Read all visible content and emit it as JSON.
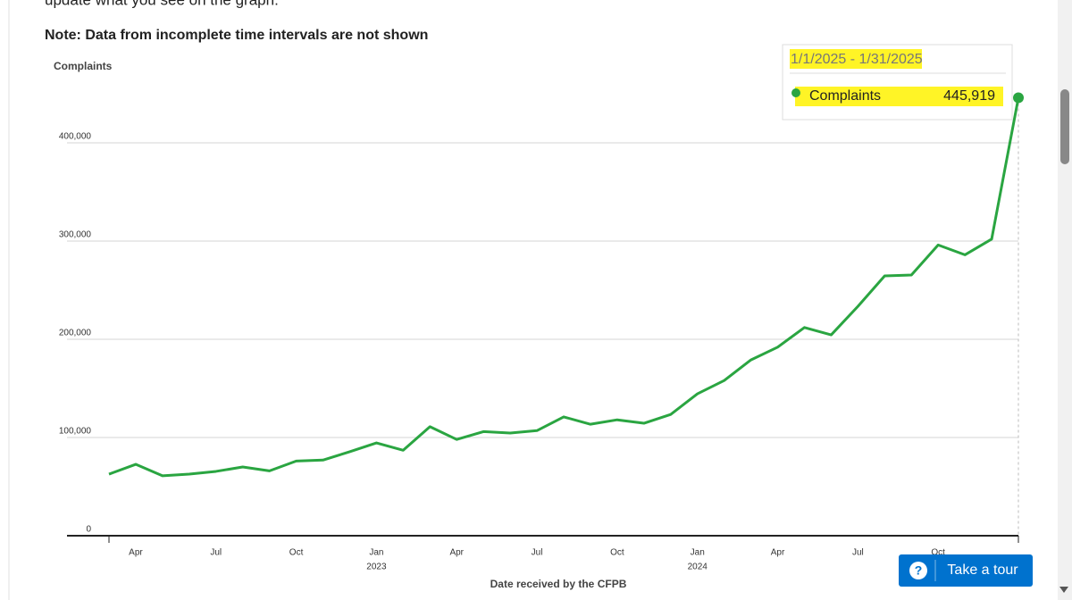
{
  "intro": "update what you see on the graph.",
  "note": "Note:  Data from incomplete time intervals are not shown",
  "tour_button": {
    "icon": "?",
    "label": "Take a tour"
  },
  "chart_data": {
    "type": "line",
    "y_label": "Complaints",
    "x_label": "Date received by the CFPB",
    "categories": [
      null,
      "Apr",
      null,
      null,
      "Jul",
      null,
      null,
      "Oct",
      null,
      null,
      "Jan",
      null,
      null,
      "Apr",
      null,
      null,
      "Jul",
      null,
      null,
      "Oct",
      null,
      null,
      "Jan",
      null,
      null,
      "Apr",
      null,
      null,
      "Jul",
      null,
      null,
      "Oct",
      null,
      null,
      null
    ],
    "x_sublabels": [
      "2023",
      "2024"
    ],
    "series": [
      {
        "name": "Complaints",
        "color": "#2aa541",
        "values": [
          62700,
          72700,
          61000,
          62700,
          65500,
          70000,
          66000,
          76000,
          77000,
          85500,
          94500,
          87000,
          111000,
          98000,
          106000,
          104500,
          107000,
          121000,
          113500,
          118000,
          114500,
          123500,
          144500,
          158000,
          179000,
          192000,
          212000,
          204500,
          233500,
          264500,
          265500,
          296000,
          286000,
          302000,
          445919
        ],
        "value_labels": [
          null,
          null,
          null,
          null,
          null,
          null,
          null,
          null,
          null,
          null,
          null,
          null,
          null,
          null,
          null,
          null,
          null,
          null,
          null,
          null,
          null,
          null,
          null,
          null,
          null,
          null,
          null,
          null,
          null,
          null,
          null,
          null,
          null,
          null,
          "445,919"
        ]
      }
    ],
    "tooltip_title": "1/1/2025 - 1/31/2025",
    "ylim": [
      0,
      450000
    ],
    "yticks": [
      0,
      {
        "value": 100000,
        "label": "100,000"
      },
      {
        "value": 200000,
        "label": "200,000"
      },
      {
        "value": 300000,
        "label": "300,000"
      },
      {
        "value": 400000,
        "label": "400,000"
      }
    ],
    "grid": true
  }
}
